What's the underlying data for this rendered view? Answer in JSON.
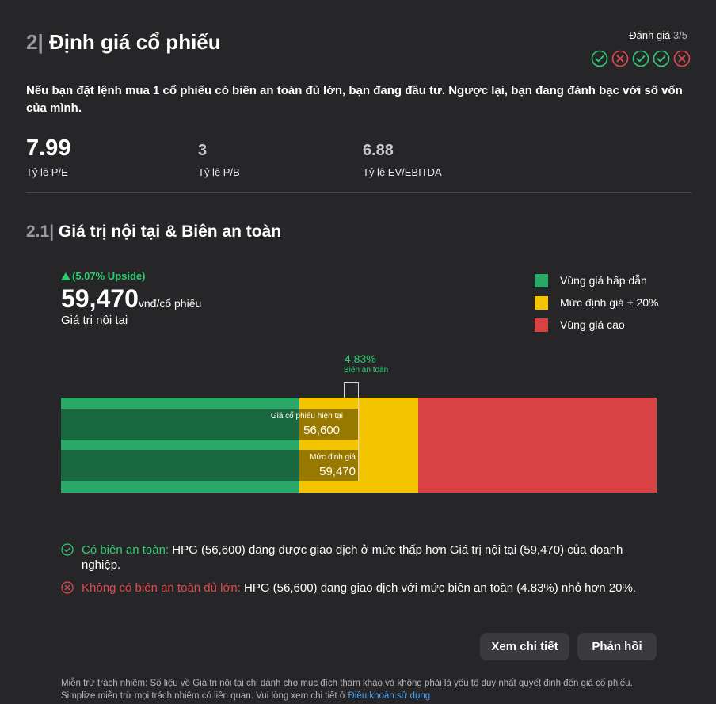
{
  "header": {
    "number": "2|",
    "title": "Định giá cổ phiếu",
    "rating_label": "Đánh giá",
    "rating_score": "3/5",
    "rating_icons": [
      "check-circle-icon",
      "x-circle-icon",
      "check-circle-icon",
      "check-circle-icon",
      "x-circle-icon"
    ],
    "colors": {
      "pass": "#2ecc71",
      "fail": "#e5484d"
    }
  },
  "intro": "Nếu bạn đặt lệnh mua 1 cổ phiếu có biên an toàn đủ lớn, bạn đang đầu tư. Ngược lại, bạn đang đánh bạc với số vốn của mình.",
  "metrics": [
    {
      "value": "7.99",
      "label": "Tỷ lệ P/E"
    },
    {
      "value": "3",
      "label": "Tỷ lệ P/B"
    },
    {
      "value": "6.88",
      "label": "Tỷ lệ EV/EBITDA"
    }
  ],
  "section": {
    "number": "2.1|",
    "title": "Giá trị nội tại & Biên an toàn"
  },
  "intrinsic": {
    "upside": "(5.07% Upside)",
    "value": "59,470",
    "unit": "vnđ/cổ phiếu",
    "label": "Giá trị nội tại"
  },
  "legend": [
    {
      "label": "Vùng giá hấp dẫn",
      "color": "#2aa867"
    },
    {
      "label": "Mức định giá ± 20%",
      "color": "#f5c400"
    },
    {
      "label": "Vùng giá cao",
      "color": "#d84244"
    }
  ],
  "bar": {
    "safety_margin": "4.83%",
    "safety_label": "Biên an toàn",
    "current_label": "Giá cổ phiếu hiện tại",
    "current_value": "56,600",
    "intrinsic_label": "Mức định giá",
    "intrinsic_value": "59,470"
  },
  "notes": [
    {
      "icon": "check-circle-icon",
      "status": "Có biên an toàn:",
      "text": "HPG (56,600) đang được giao dịch ở mức thấp hơn Giá trị nội tại (59,470) của doanh nghiệp."
    },
    {
      "icon": "x-circle-icon",
      "status": "Không có biên an toàn đủ lớn:",
      "text": "HPG (56,600) đang giao dịch với mức biên an toàn (4.83%) nhỏ hơn 20%."
    }
  ],
  "buttons": {
    "details": "Xem chi tiết",
    "feedback": "Phản hồi"
  },
  "disclaimer": {
    "text": "Miễn trừ trách nhiệm: Số liệu về Giá trị nội tại chỉ dành cho mục đích tham khảo và không phải là yếu tố duy nhất quyết định đến giá cổ phiếu. Simplize miễn trừ mọi trách nhiệm có liên quan. Vui lòng xem chi tiết ở",
    "link": "Điều khoản sử dụng"
  }
}
